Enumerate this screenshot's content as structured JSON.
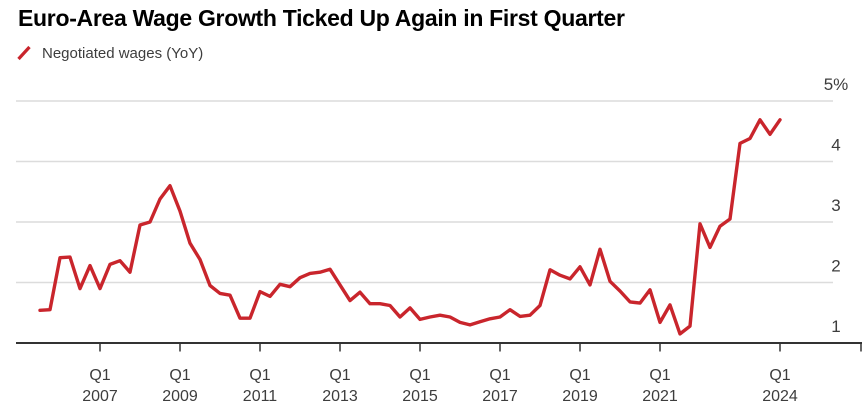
{
  "header": {
    "title": "Euro-Area Wage Growth Ticked Up Again in First Quarter"
  },
  "legend": {
    "series_label": "Negotiated wages (YoY)",
    "swatch_style": "red-slash"
  },
  "colors": {
    "line": "#c9252c",
    "grid": "#dcdcdc",
    "axis": "#333333",
    "text": "#3d3d3d",
    "title": "#000000",
    "background": "#ffffff"
  },
  "chart_data": {
    "type": "line",
    "title": "Euro-Area Wage Growth Ticked Up Again in First Quarter",
    "xlabel": "",
    "ylabel": "",
    "unit": "percent, year-over-year",
    "frequency": "quarterly",
    "ylim": [
      1,
      5
    ],
    "grid": "horizontal",
    "legend_position": "top-left",
    "y_axis": {
      "side": "right",
      "ticks": [
        {
          "value": 5,
          "label": "5%"
        },
        {
          "value": 4,
          "label": "4"
        },
        {
          "value": 3,
          "label": "3"
        },
        {
          "value": 2,
          "label": "2"
        },
        {
          "value": 1,
          "label": "1"
        }
      ]
    },
    "x_axis": {
      "tick_label_top": "Q1",
      "tick_years": [
        "2007",
        "2009",
        "2011",
        "2013",
        "2015",
        "2017",
        "2019",
        "2021",
        "2024"
      ]
    },
    "x": [
      "Q3 2005",
      "Q4 2005",
      "Q1 2006",
      "Q2 2006",
      "Q3 2006",
      "Q4 2006",
      "Q1 2007",
      "Q2 2007",
      "Q3 2007",
      "Q4 2007",
      "Q1 2008",
      "Q2 2008",
      "Q3 2008",
      "Q4 2008",
      "Q1 2009",
      "Q2 2009",
      "Q3 2009",
      "Q4 2009",
      "Q1 2010",
      "Q2 2010",
      "Q3 2010",
      "Q4 2010",
      "Q1 2011",
      "Q2 2011",
      "Q3 2011",
      "Q4 2011",
      "Q1 2012",
      "Q2 2012",
      "Q3 2012",
      "Q4 2012",
      "Q1 2013",
      "Q2 2013",
      "Q3 2013",
      "Q4 2013",
      "Q1 2014",
      "Q2 2014",
      "Q3 2014",
      "Q4 2014",
      "Q1 2015",
      "Q2 2015",
      "Q3 2015",
      "Q4 2015",
      "Q1 2016",
      "Q2 2016",
      "Q3 2016",
      "Q4 2016",
      "Q1 2017",
      "Q2 2017",
      "Q3 2017",
      "Q4 2017",
      "Q1 2018",
      "Q2 2018",
      "Q3 2018",
      "Q4 2018",
      "Q1 2019",
      "Q2 2019",
      "Q3 2019",
      "Q4 2019",
      "Q1 2020",
      "Q2 2020",
      "Q3 2020",
      "Q4 2020",
      "Q1 2021",
      "Q2 2021",
      "Q3 2021",
      "Q4 2021",
      "Q1 2022",
      "Q2 2022",
      "Q3 2022",
      "Q4 2022",
      "Q1 2023",
      "Q2 2023",
      "Q3 2023",
      "Q4 2023",
      "Q1 2024"
    ],
    "series": [
      {
        "name": "Negotiated wages (YoY)",
        "color": "#c9252c",
        "values": [
          1.54,
          1.55,
          2.41,
          2.42,
          1.9,
          2.28,
          1.9,
          2.3,
          2.36,
          2.17,
          2.95,
          3.0,
          3.38,
          3.6,
          3.18,
          2.65,
          2.38,
          1.95,
          1.82,
          1.79,
          1.41,
          1.41,
          1.85,
          1.77,
          1.97,
          1.93,
          2.08,
          2.15,
          2.17,
          2.22,
          1.96,
          1.7,
          1.84,
          1.65,
          1.65,
          1.62,
          1.43,
          1.58,
          1.39,
          1.43,
          1.46,
          1.43,
          1.34,
          1.3,
          1.35,
          1.4,
          1.43,
          1.55,
          1.44,
          1.46,
          1.62,
          2.21,
          2.12,
          2.06,
          2.26,
          1.96,
          2.55,
          2.02,
          1.86,
          1.68,
          1.66,
          1.88,
          1.34,
          1.63,
          1.15,
          1.28,
          2.97,
          2.58,
          2.93,
          3.05,
          4.3,
          4.38,
          4.69,
          4.45,
          4.69
        ]
      }
    ]
  }
}
